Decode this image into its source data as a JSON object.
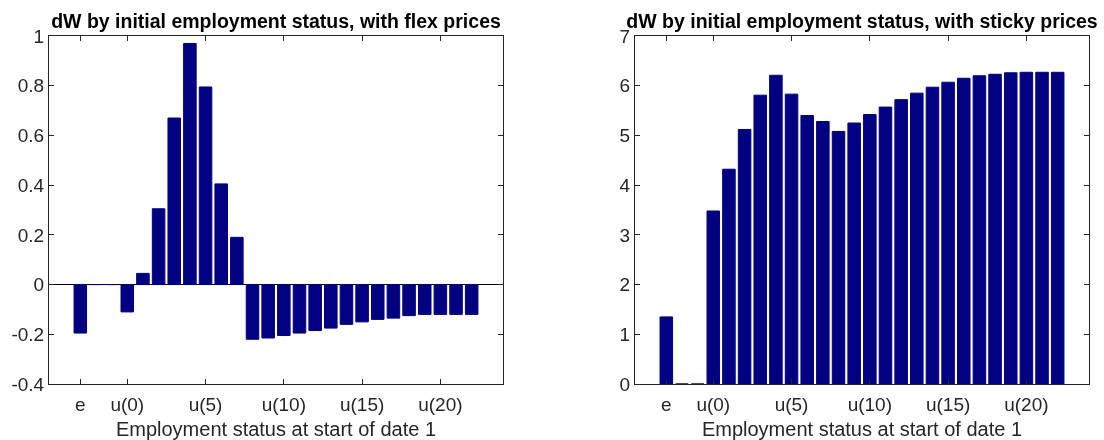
{
  "chart_data": [
    {
      "type": "bar",
      "title": "dW by initial employment status, with flex prices",
      "xlabel": "Employment status at start of date 1",
      "categories": [
        "e",
        null,
        null,
        "u(0)",
        null,
        null,
        null,
        null,
        "u(5)",
        null,
        null,
        null,
        null,
        "u(10)",
        null,
        null,
        null,
        null,
        "u(15)",
        null,
        null,
        null,
        null,
        "u(20)",
        null,
        null
      ],
      "values": [
        -0.195,
        0,
        0,
        -0.11,
        0.045,
        0.305,
        0.67,
        0.97,
        0.795,
        0.405,
        0.19,
        -0.22,
        -0.215,
        -0.205,
        -0.195,
        -0.185,
        -0.175,
        -0.16,
        -0.15,
        -0.14,
        -0.135,
        -0.125,
        -0.12,
        -0.12,
        -0.12,
        -0.12
      ],
      "color": "#000080",
      "ylim": [
        -0.4,
        1
      ],
      "yticks": [
        -0.4,
        -0.2,
        0,
        0.2,
        0.4,
        0.6,
        0.8,
        1
      ]
    },
    {
      "type": "bar",
      "title": "dW by initial employment status, with sticky prices",
      "xlabel": "Employment status at start of date 1",
      "categories": [
        "e",
        null,
        null,
        "u(0)",
        null,
        null,
        null,
        null,
        "u(5)",
        null,
        null,
        null,
        null,
        "u(10)",
        null,
        null,
        null,
        null,
        "u(15)",
        null,
        null,
        null,
        null,
        "u(20)",
        null,
        null
      ],
      "values": [
        1.35,
        0,
        0,
        3.48,
        4.32,
        5.12,
        5.81,
        6.21,
        5.83,
        5.4,
        5.28,
        5.08,
        5.25,
        5.42,
        5.57,
        5.72,
        5.85,
        5.97,
        6.07,
        6.15,
        6.2,
        6.23,
        6.26,
        6.27,
        6.27,
        6.27
      ],
      "color": "#000080",
      "ylim": [
        0,
        7
      ],
      "yticks": [
        0,
        1,
        2,
        3,
        4,
        5,
        6,
        7
      ]
    }
  ]
}
